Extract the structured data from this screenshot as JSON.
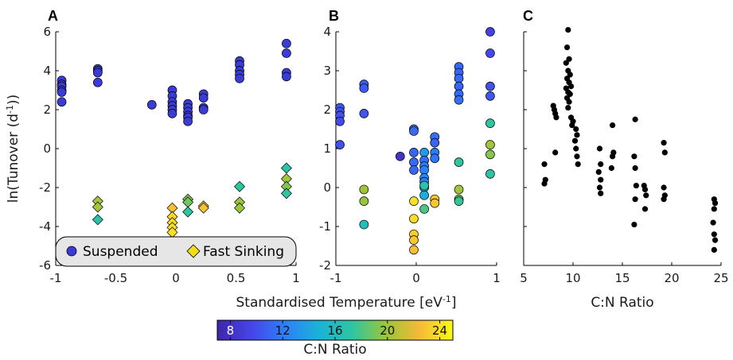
{
  "colors": {
    "suspended_marker": "#3b3bd6",
    "fast_sinking_marker": "#f2dd1a",
    "panel_c_marker": "#000000",
    "legend_bg": "#e6e6e6",
    "colormap": [
      "#3e26a8",
      "#4744e8",
      "#2d7ff9",
      "#1ab2d7",
      "#2dc5a2",
      "#99c63a",
      "#f5b937",
      "#f9fb15"
    ]
  },
  "chart_data": [
    {
      "panel": "A",
      "type": "scatter",
      "ylabel_base": "ln(Tunover (d",
      "ylabel_sup": "-1",
      "ylabel_end": "))",
      "xlim": [
        -1,
        1
      ],
      "ylim": [
        -6,
        6
      ],
      "xticks": [
        "-1",
        "-0.5",
        "0",
        "0.5",
        "1"
      ],
      "yticks": [
        "-6",
        "-4",
        "-2",
        "0",
        "2",
        "4",
        "6"
      ],
      "legend": {
        "placement": "bottom-left",
        "entries": [
          "Suspended",
          "Fast Sinking"
        ]
      },
      "series": [
        {
          "name": "Suspended",
          "marker": "circle",
          "points": [
            [
              -0.95,
              3.5
            ],
            [
              -0.95,
              3.3
            ],
            [
              -0.95,
              3.2
            ],
            [
              -0.95,
              3.0
            ],
            [
              -0.95,
              2.9
            ],
            [
              -0.95,
              2.4
            ],
            [
              -0.65,
              4.1
            ],
            [
              -0.65,
              4.0
            ],
            [
              -0.65,
              3.9
            ],
            [
              -0.65,
              3.4
            ],
            [
              -0.2,
              2.25
            ],
            [
              -0.03,
              3.0
            ],
            [
              -0.03,
              2.7
            ],
            [
              -0.03,
              2.4
            ],
            [
              -0.03,
              2.2
            ],
            [
              -0.03,
              2.0
            ],
            [
              -0.03,
              1.8
            ],
            [
              0.1,
              2.3
            ],
            [
              0.1,
              2.1
            ],
            [
              0.1,
              1.9
            ],
            [
              0.1,
              1.7
            ],
            [
              0.1,
              1.6
            ],
            [
              0.1,
              1.4
            ],
            [
              0.23,
              2.8
            ],
            [
              0.23,
              2.6
            ],
            [
              0.23,
              2.1
            ],
            [
              0.23,
              2.0
            ],
            [
              0.53,
              4.5
            ],
            [
              0.53,
              4.3
            ],
            [
              0.53,
              4.0
            ],
            [
              0.53,
              3.8
            ],
            [
              0.53,
              3.6
            ],
            [
              0.92,
              5.4
            ],
            [
              0.92,
              4.9
            ],
            [
              0.92,
              3.9
            ],
            [
              0.92,
              3.7
            ]
          ]
        },
        {
          "name": "Fast Sinking",
          "marker": "diamond",
          "points": [
            [
              -0.65,
              -2.7,
              20.4
            ],
            [
              -0.65,
              -3.0,
              20.1
            ],
            [
              -0.65,
              -3.65,
              17.0
            ],
            [
              -0.03,
              -3.05,
              22.7
            ],
            [
              -0.03,
              -3.5,
              23.6
            ],
            [
              -0.03,
              -3.8,
              23.8
            ],
            [
              -0.03,
              -4.05,
              23.9
            ],
            [
              -0.03,
              -4.3,
              24.0
            ],
            [
              0.1,
              -2.6,
              19.3
            ],
            [
              0.1,
              -2.75,
              19.0
            ],
            [
              0.1,
              -3.25,
              17.4
            ],
            [
              0.23,
              -2.95,
              23.0
            ],
            [
              0.23,
              -3.05,
              22.8
            ],
            [
              0.53,
              -1.95,
              17.3
            ],
            [
              0.53,
              -2.75,
              19.8
            ],
            [
              0.53,
              -3.05,
              19.9
            ],
            [
              0.92,
              -1.0,
              17.2
            ],
            [
              0.92,
              -1.55,
              20.1
            ],
            [
              0.92,
              -1.95,
              19.3
            ],
            [
              0.92,
              -2.3,
              17.3
            ]
          ]
        }
      ]
    },
    {
      "panel": "B",
      "type": "scatter",
      "xlim": [
        -1,
        1
      ],
      "ylim": [
        -2,
        4
      ],
      "xticks": [
        "-1",
        "0",
        "1"
      ],
      "yticks": [
        "-2",
        "-1",
        "0",
        "1",
        "2",
        "3",
        "4"
      ],
      "points": [
        [
          -0.95,
          2.05,
          10.5
        ],
        [
          -0.95,
          1.95,
          10.2
        ],
        [
          -0.95,
          1.85,
          10.0
        ],
        [
          -0.95,
          1.7,
          9.8
        ],
        [
          -0.95,
          1.1,
          10.2
        ],
        [
          -0.65,
          2.65,
          10.8
        ],
        [
          -0.65,
          2.55,
          10.6
        ],
        [
          -0.65,
          1.9,
          10.3
        ],
        [
          -0.65,
          -0.05,
          20.0
        ],
        [
          -0.65,
          -0.35,
          19.8
        ],
        [
          -0.65,
          -0.95,
          16.0
        ],
        [
          -0.2,
          0.8,
          8.2
        ],
        [
          -0.03,
          1.5,
          11.5
        ],
        [
          -0.03,
          1.45,
          11.2
        ],
        [
          -0.03,
          0.9,
          11.0
        ],
        [
          -0.03,
          0.65,
          11.3
        ],
        [
          -0.03,
          0.45,
          11.0
        ],
        [
          -0.03,
          -0.35,
          24.0
        ],
        [
          -0.03,
          -0.8,
          23.8
        ],
        [
          -0.03,
          -1.2,
          23.3
        ],
        [
          -0.03,
          -1.35,
          23.0
        ],
        [
          -0.03,
          -1.6,
          22.7
        ],
        [
          0.1,
          0.9,
          13.5
        ],
        [
          0.1,
          0.7,
          11.5
        ],
        [
          0.1,
          0.55,
          12.0
        ],
        [
          0.1,
          0.45,
          12.2
        ],
        [
          0.1,
          0.25,
          12.8
        ],
        [
          0.1,
          0.15,
          12.0
        ],
        [
          0.1,
          0.0,
          13.6
        ],
        [
          0.1,
          -0.2,
          14.5
        ],
        [
          0.1,
          -0.55,
          18.0
        ],
        [
          0.1,
          0.05,
          17.0
        ],
        [
          0.23,
          1.3,
          11.5
        ],
        [
          0.23,
          1.15,
          11.0
        ],
        [
          0.23,
          0.9,
          12.0
        ],
        [
          0.23,
          0.75,
          11.8
        ],
        [
          0.23,
          -0.3,
          22.8
        ],
        [
          0.23,
          -0.4,
          23.0
        ],
        [
          0.53,
          3.1,
          11.2
        ],
        [
          0.53,
          2.95,
          11.0
        ],
        [
          0.53,
          2.8,
          11.3
        ],
        [
          0.53,
          2.6,
          11.0
        ],
        [
          0.53,
          2.4,
          11.3
        ],
        [
          0.53,
          2.25,
          11.5
        ],
        [
          0.53,
          0.65,
          17.3
        ],
        [
          0.53,
          -0.05,
          20.1
        ],
        [
          0.53,
          -0.3,
          19.3
        ],
        [
          0.53,
          -0.35,
          17.4
        ],
        [
          0.92,
          4.0,
          9.3
        ],
        [
          0.92,
          3.45,
          9.8
        ],
        [
          0.92,
          2.6,
          10.2
        ],
        [
          0.92,
          2.35,
          10.4
        ],
        [
          0.92,
          1.65,
          17.3
        ],
        [
          0.92,
          1.1,
          20.1
        ],
        [
          0.92,
          0.85,
          19.4
        ],
        [
          0.92,
          0.35,
          17.2
        ]
      ]
    },
    {
      "panel": "C",
      "type": "scatter",
      "xlabel": "C:N Ratio",
      "xlim": [
        5,
        25
      ],
      "ylim": [
        -2,
        4
      ],
      "xticks": [
        "5",
        "10",
        "15",
        "20",
        "25"
      ],
      "points": [
        [
          9.5,
          4.05
        ],
        [
          9.4,
          3.6
        ],
        [
          9.6,
          3.3
        ],
        [
          9.3,
          3.2
        ],
        [
          9.5,
          3.0
        ],
        [
          9.7,
          2.9
        ],
        [
          9.4,
          2.8
        ],
        [
          9.6,
          2.7
        ],
        [
          9.8,
          2.6
        ],
        [
          9.3,
          2.55
        ],
        [
          9.5,
          2.45
        ],
        [
          9.7,
          2.4
        ],
        [
          9.4,
          2.3
        ],
        [
          9.6,
          2.2
        ],
        [
          9.5,
          2.05
        ],
        [
          9.8,
          1.8
        ],
        [
          10.0,
          1.7
        ],
        [
          9.9,
          1.6
        ],
        [
          10.3,
          1.5
        ],
        [
          10.4,
          1.35
        ],
        [
          10.2,
          1.2
        ],
        [
          10.3,
          1.0
        ],
        [
          10.4,
          0.8
        ],
        [
          10.5,
          0.6
        ],
        [
          8.0,
          2.1
        ],
        [
          8.1,
          2.0
        ],
        [
          8.2,
          1.9
        ],
        [
          8.3,
          1.8
        ],
        [
          8.2,
          0.9
        ],
        [
          7.1,
          0.6
        ],
        [
          7.2,
          0.2
        ],
        [
          7.1,
          0.1
        ],
        [
          12.7,
          1.0
        ],
        [
          12.8,
          0.6
        ],
        [
          12.6,
          0.4
        ],
        [
          12.8,
          0.2
        ],
        [
          12.7,
          0.0
        ],
        [
          12.8,
          -0.15
        ],
        [
          14.0,
          1.6
        ],
        [
          14.1,
          0.9
        ],
        [
          14.0,
          0.8
        ],
        [
          13.9,
          0.5
        ],
        [
          16.3,
          1.75
        ],
        [
          16.2,
          0.8
        ],
        [
          16.3,
          0.5
        ],
        [
          16.4,
          0.05
        ],
        [
          16.3,
          -0.3
        ],
        [
          16.2,
          -0.95
        ],
        [
          17.2,
          0.05
        ],
        [
          17.3,
          -0.05
        ],
        [
          17.4,
          -0.2
        ],
        [
          17.3,
          -0.55
        ],
        [
          19.2,
          1.15
        ],
        [
          19.3,
          0.9
        ],
        [
          19.2,
          0.0
        ],
        [
          19.3,
          -0.2
        ],
        [
          19.2,
          -0.3
        ],
        [
          24.3,
          -0.3
        ],
        [
          24.4,
          -0.4
        ],
        [
          24.3,
          -0.55
        ],
        [
          24.2,
          -0.9
        ],
        [
          24.3,
          -1.2
        ],
        [
          24.4,
          -1.35
        ],
        [
          24.3,
          -1.6
        ]
      ]
    }
  ],
  "shared_xlabel_base": "Standardised Temperature [eV",
  "shared_xlabel_sup": "-1",
  "shared_xlabel_end": "]",
  "colorbar": {
    "label": "C:N Ratio",
    "range": [
      7,
      25
    ],
    "ticks": [
      "8",
      "12",
      "16",
      "20",
      "24"
    ]
  }
}
